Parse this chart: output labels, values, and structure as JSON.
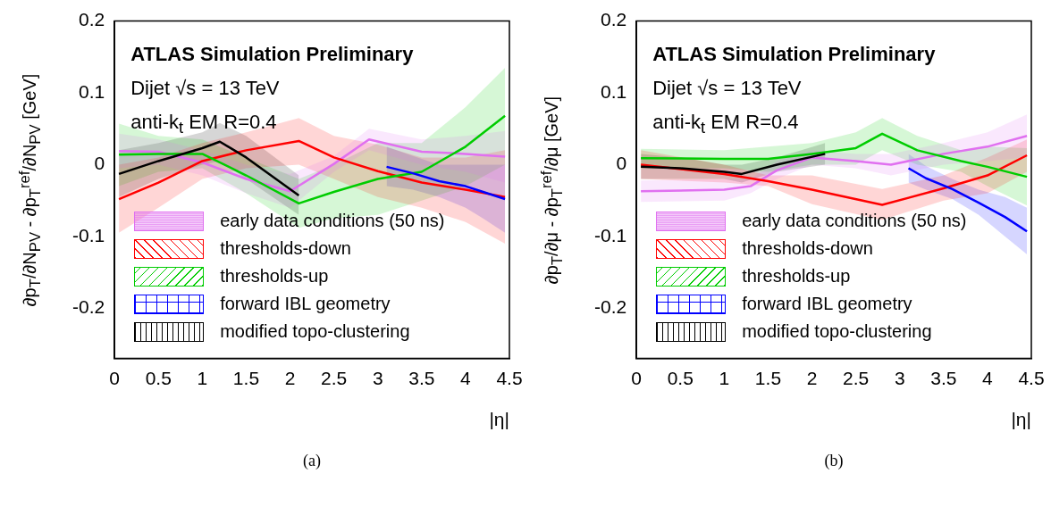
{
  "chart_data": [
    {
      "type": "line",
      "subtitle": "(a)",
      "xlabel": "|η|",
      "ylabel": "∂p$_{T}$/∂N$_{PV}$ - ∂p$_{T}$$^{ref}$/∂N$_{PV}$ [GeV]",
      "annotations": [
        "ATLAS Simulation Preliminary",
        "Dijet √s = 13 TeV",
        "anti-k$_{t}$ EM R=0.4"
      ],
      "xlim": [
        0,
        4.5
      ],
      "xticks": [
        0,
        0.5,
        1,
        1.5,
        2,
        2.5,
        3,
        3.5,
        4,
        4.5
      ],
      "ylim": [
        -0.27,
        0.2
      ],
      "yticks": [
        -0.2,
        -0.1,
        0,
        0.1,
        0.2
      ],
      "grid": false,
      "legend": "bottom left",
      "marker": "none",
      "series": [
        {
          "name": "early data conditions (50 ns)",
          "color": "#e070f0",
          "x": [
            0.05,
            0.5,
            1,
            1.5,
            2,
            2.5,
            2.9,
            3.5,
            4,
            4.45
          ],
          "lower": [
            -0.005,
            0.0,
            -0.015,
            -0.04,
            -0.06,
            -0.01,
            0.02,
            0.0,
            -0.01,
            -0.025
          ],
          "upper": [
            0.043,
            0.035,
            0.02,
            0.0,
            -0.013,
            0.012,
            0.05,
            0.035,
            0.04,
            0.047
          ],
          "values": [
            0.019,
            0.018,
            0.003,
            -0.02,
            -0.037,
            0.001,
            0.035,
            0.018,
            0.015,
            0.011
          ]
        },
        {
          "name": "thresholds-down",
          "color": "#ff0000",
          "x": [
            0.05,
            0.5,
            1,
            1.5,
            2.1,
            2.5,
            3,
            3.5,
            4,
            4.45
          ],
          "lower": [
            -0.095,
            -0.06,
            -0.02,
            -0.005,
            0.0,
            -0.02,
            -0.045,
            -0.06,
            -0.08,
            -0.11
          ],
          "upper": [
            0.0,
            0.01,
            0.03,
            0.045,
            0.065,
            0.04,
            0.028,
            0.01,
            0.01,
            0.02
          ],
          "values": [
            -0.048,
            -0.025,
            0.005,
            0.02,
            0.033,
            0.01,
            -0.009,
            -0.025,
            -0.035,
            -0.045
          ]
        },
        {
          "name": "thresholds-up",
          "color": "#00cc00",
          "x": [
            0.05,
            0.5,
            1,
            1.5,
            2.1,
            2.5,
            3,
            3.5,
            4,
            4.45
          ],
          "lower": [
            -0.03,
            -0.01,
            -0.005,
            -0.04,
            -0.088,
            -0.075,
            -0.07,
            -0.05,
            -0.03,
            0.0
          ],
          "upper": [
            0.057,
            0.04,
            0.035,
            0.01,
            -0.02,
            0.0,
            0.03,
            0.03,
            0.08,
            0.135
          ],
          "values": [
            0.014,
            0.015,
            0.015,
            -0.015,
            -0.054,
            -0.038,
            -0.02,
            -0.01,
            0.025,
            0.068
          ]
        },
        {
          "name": "forward IBL geometry",
          "color": "#0000ff",
          "x": [
            3.1,
            3.4,
            3.7,
            4.0,
            4.2,
            4.45
          ],
          "lower": [
            -0.03,
            -0.035,
            -0.045,
            -0.06,
            -0.075,
            -0.095
          ],
          "upper": [
            0.025,
            0.012,
            0.0,
            0.0,
            0.0,
            0.0
          ],
          "values": [
            -0.003,
            -0.012,
            -0.023,
            -0.03,
            -0.038,
            -0.048
          ]
        },
        {
          "name": "modified topo-clustering",
          "color": "#000000",
          "x": [
            0.05,
            0.5,
            1,
            1.2,
            1.5,
            2.1
          ],
          "lower": [
            -0.045,
            -0.02,
            0.0,
            0.005,
            -0.02,
            -0.07
          ],
          "upper": [
            0.02,
            0.03,
            0.045,
            0.058,
            0.04,
            -0.015
          ],
          "values": [
            -0.013,
            0.005,
            0.023,
            0.032,
            0.01,
            -0.043
          ]
        }
      ]
    },
    {
      "type": "line",
      "subtitle": "(b)",
      "xlabel": "|η|",
      "ylabel": "∂p$_{T}$/∂μ - ∂p$_{T}$$^{ref}$/∂μ [GeV]",
      "annotations": [
        "ATLAS Simulation Preliminary",
        "Dijet √s = 13 TeV",
        "anti-k$_{t}$ EM R=0.4"
      ],
      "xlim": [
        0,
        4.5
      ],
      "xticks": [
        0,
        0.5,
        1,
        1.5,
        2,
        2.5,
        3,
        3.5,
        4,
        4.5
      ],
      "ylim": [
        -0.27,
        0.2
      ],
      "yticks": [
        -0.2,
        -0.1,
        0,
        0.1,
        0.2
      ],
      "grid": false,
      "legend": "bottom left",
      "marker": "none",
      "series": [
        {
          "name": "early data conditions (50 ns)",
          "color": "#e070f0",
          "x": [
            0.05,
            1,
            1.3,
            1.6,
            2,
            2.5,
            2.9,
            3.5,
            4,
            4.45
          ],
          "lower": [
            -0.052,
            -0.05,
            -0.04,
            -0.02,
            0.0,
            -0.005,
            -0.015,
            0.0,
            0.005,
            0.01
          ],
          "upper": [
            -0.022,
            -0.02,
            -0.02,
            0.005,
            0.02,
            0.015,
            0.015,
            0.03,
            0.045,
            0.07
          ],
          "values": [
            -0.037,
            -0.035,
            -0.03,
            -0.008,
            0.01,
            0.005,
            0.0,
            0.015,
            0.025,
            0.04
          ]
        },
        {
          "name": "thresholds-down",
          "color": "#ff0000",
          "x": [
            0.05,
            1,
            1.5,
            2,
            2.8,
            3.5,
            4,
            4.45
          ],
          "lower": [
            -0.02,
            -0.025,
            -0.03,
            -0.055,
            -0.077,
            -0.05,
            -0.04,
            -0.01
          ],
          "upper": [
            0.02,
            0.0,
            -0.015,
            -0.015,
            -0.034,
            -0.015,
            0.01,
            0.035
          ],
          "values": [
            0.0,
            -0.013,
            -0.023,
            -0.035,
            -0.056,
            -0.033,
            -0.015,
            0.013
          ]
        },
        {
          "name": "thresholds-up",
          "color": "#00cc00",
          "x": [
            0.05,
            1,
            1.5,
            2,
            2.5,
            2.8,
            3.2,
            3.7,
            4,
            4.45
          ],
          "lower": [
            -0.005,
            -0.005,
            -0.01,
            0.0,
            0.0,
            0.02,
            0.0,
            -0.01,
            -0.03,
            -0.057
          ],
          "upper": [
            0.022,
            0.02,
            0.025,
            0.03,
            0.045,
            0.065,
            0.04,
            0.02,
            0.025,
            0.023
          ],
          "values": [
            0.009,
            0.008,
            0.008,
            0.015,
            0.023,
            0.043,
            0.02,
            0.005,
            -0.003,
            -0.017
          ]
        },
        {
          "name": "forward IBL geometry",
          "color": "#0000ff",
          "x": [
            3.1,
            3.3,
            3.6,
            3.9,
            4.2,
            4.45
          ],
          "lower": [
            -0.025,
            -0.035,
            -0.048,
            -0.07,
            -0.1,
            -0.125
          ],
          "upper": [
            0.015,
            -0.002,
            -0.02,
            -0.035,
            -0.045,
            -0.06
          ],
          "values": [
            -0.005,
            -0.019,
            -0.034,
            -0.053,
            -0.073,
            -0.093
          ]
        },
        {
          "name": "modified topo-clustering",
          "color": "#000000",
          "x": [
            0.05,
            0.5,
            1,
            1.2,
            1.6,
            2.15
          ],
          "lower": [
            -0.02,
            -0.02,
            -0.02,
            -0.025,
            -0.01,
            0.0
          ],
          "upper": [
            0.015,
            0.01,
            0.0,
            0.0,
            0.01,
            0.03
          ],
          "values": [
            -0.003,
            -0.005,
            -0.01,
            -0.013,
            0.0,
            0.015
          ]
        }
      ]
    }
  ]
}
